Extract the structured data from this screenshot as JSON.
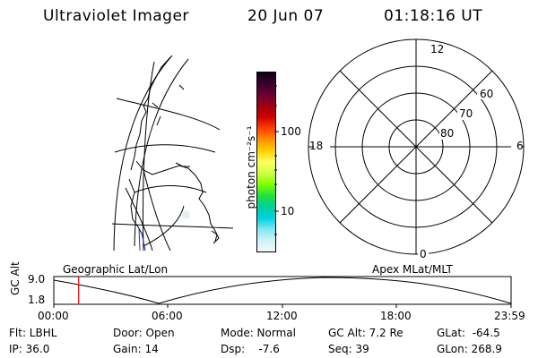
{
  "header": {
    "instrument": "Ultraviolet Imager",
    "date": "20 Jun 07",
    "time": "01:18:16 UT"
  },
  "colorbar": {
    "unit_label": "photon cm⁻²s⁻¹",
    "tick_100": "100",
    "tick_10": "10",
    "colors_top_to_bottom": [
      "#100010",
      "#3a0030",
      "#6a0030",
      "#a00010",
      "#d00000",
      "#ff4000",
      "#ff9000",
      "#ffd000",
      "#ffff60",
      "#d0ff40",
      "#80ff00",
      "#20e040",
      "#00d0a0",
      "#00d0e0",
      "#80e8f0",
      "#d0f0f8",
      "#f4f8fc"
    ]
  },
  "polar": {
    "mlt_12": "12",
    "mlt_18": "18",
    "mlt_6": "6",
    "mlt_0": "0",
    "lat_60": "60",
    "lat_70": "70",
    "lat_80": "80"
  },
  "timeline": {
    "left_label": "Geographic Lat/Lon",
    "right_label": "Apex MLat/MLT",
    "axis_title": "GC Alt",
    "y_top": "9.0",
    "y_bottom": "1.8",
    "x_ticks": [
      "00:00",
      "06:00",
      "12:00",
      "18:00",
      "23:59"
    ],
    "marker_color": "#e00000",
    "marker_fraction": 0.0543
  },
  "info": {
    "flt": "Flt: LBHL",
    "ip": "IP: 36.0",
    "door": "Door: Open",
    "gain": "Gain: 14",
    "mode": "Mode: Normal",
    "dsp": "Dsp:    -7.6",
    "gcalt": "GC Alt: 7.2 Re",
    "seq": "Seq: 39",
    "glat": "GLat:  -64.5",
    "glon": "GLon: 268.9"
  }
}
